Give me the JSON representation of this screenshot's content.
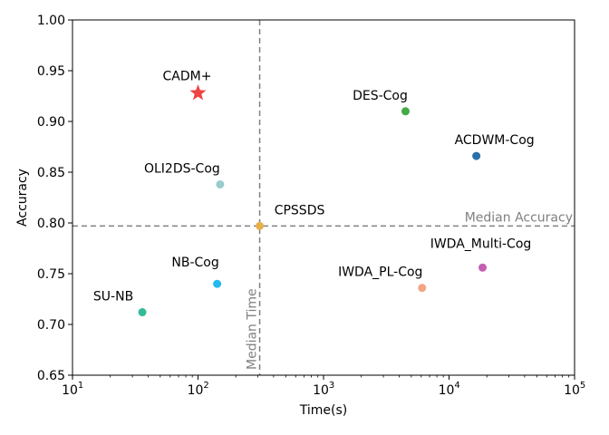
{
  "chart_data": {
    "type": "scatter",
    "xlabel": "Time(s)",
    "ylabel": "Accuracy",
    "xscale": "log",
    "xlim": [
      10,
      100000
    ],
    "ylim": [
      0.65,
      1.0
    ],
    "xticks": [
      {
        "value": 10,
        "base": "10",
        "exp": "1"
      },
      {
        "value": 100,
        "base": "10",
        "exp": "2"
      },
      {
        "value": 1000,
        "base": "10",
        "exp": "3"
      },
      {
        "value": 10000,
        "base": "10",
        "exp": "4"
      },
      {
        "value": 100000,
        "base": "10",
        "exp": "5"
      }
    ],
    "yticks": [
      "0.65",
      "0.70",
      "0.75",
      "0.80",
      "0.85",
      "0.90",
      "0.95",
      "1.00"
    ],
    "grid": false,
    "points": [
      {
        "name": "CADM+",
        "x": 100,
        "y": 0.928,
        "color": "#ee4444",
        "marker": "star"
      },
      {
        "name": "DES-Cog",
        "x": 4500,
        "y": 0.91,
        "color": "#44aa44",
        "marker": "circle"
      },
      {
        "name": "ACDWM-Cog",
        "x": 16500,
        "y": 0.866,
        "color": "#2a6fa8",
        "marker": "circle"
      },
      {
        "name": "OLI2DS-Cog",
        "x": 150,
        "y": 0.838,
        "color": "#99cccc",
        "marker": "circle"
      },
      {
        "name": "CPSSDS",
        "x": 310,
        "y": 0.797,
        "color": "#e8b04a",
        "marker": "circle"
      },
      {
        "name": "IWDA_Multi-Cog",
        "x": 18500,
        "y": 0.756,
        "color": "#c45fb3",
        "marker": "circle"
      },
      {
        "name": "NB-Cog",
        "x": 142,
        "y": 0.74,
        "color": "#22bbee",
        "marker": "circle"
      },
      {
        "name": "IWDA_PL-Cog",
        "x": 6100,
        "y": 0.736,
        "color": "#f4a582",
        "marker": "circle"
      },
      {
        "name": "SU-NB",
        "x": 36,
        "y": 0.712,
        "color": "#33bb99",
        "marker": "circle"
      }
    ],
    "reference_lines": {
      "median_time": {
        "label": "Median Time",
        "x": 310
      },
      "median_accuracy": {
        "label": "Median Accuracy",
        "y": 0.797
      }
    }
  }
}
